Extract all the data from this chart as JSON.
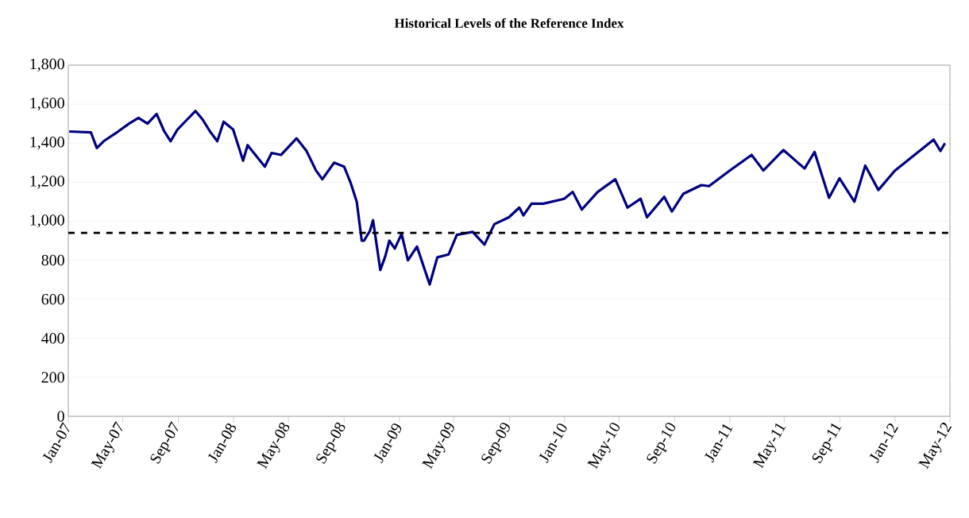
{
  "chart_data": {
    "type": "line",
    "title": "Historical Levels of the Reference Index",
    "x": [
      "2007-01-03",
      "2007-02-20",
      "2007-03-05",
      "2007-03-20",
      "2007-04-15",
      "2007-05-15",
      "2007-06-05",
      "2007-06-25",
      "2007-07-15",
      "2007-08-01",
      "2007-08-15",
      "2007-08-30",
      "2007-09-20",
      "2007-10-09",
      "2007-10-25",
      "2007-11-10",
      "2007-11-26",
      "2007-12-10",
      "2007-12-31",
      "2008-01-22",
      "2008-02-01",
      "2008-03-10",
      "2008-03-25",
      "2008-04-15",
      "2008-05-19",
      "2008-06-10",
      "2008-07-01",
      "2008-07-15",
      "2008-08-10",
      "2008-09-01",
      "2008-09-15",
      "2008-09-29",
      "2008-10-10",
      "2008-10-15",
      "2008-10-28",
      "2008-11-04",
      "2008-11-20",
      "2008-12-01",
      "2008-12-10",
      "2008-12-22",
      "2009-01-06",
      "2009-01-20",
      "2009-02-09",
      "2009-03-09",
      "2009-03-26",
      "2009-04-20",
      "2009-05-08",
      "2009-06-12",
      "2009-07-08",
      "2009-07-30",
      "2009-08-31",
      "2009-09-23",
      "2009-10-02",
      "2009-10-20",
      "2009-11-15",
      "2009-12-31",
      "2010-01-19",
      "2010-02-08",
      "2010-03-15",
      "2010-04-23",
      "2010-05-20",
      "2010-06-18",
      "2010-07-02",
      "2010-08-09",
      "2010-08-26",
      "2010-09-20",
      "2010-10-30",
      "2010-11-16",
      "2010-12-31",
      "2011-02-18",
      "2011-03-16",
      "2011-04-29",
      "2011-06-15",
      "2011-07-07",
      "2011-08-08",
      "2011-08-31",
      "2011-10-03",
      "2011-10-27",
      "2011-11-25",
      "2011-12-31",
      "2012-03-26",
      "2012-04-10",
      "2012-04-20"
    ],
    "series": [
      {
        "color": "#000080",
        "values": [
          1460,
          1455,
          1375,
          1410,
          1450,
          1500,
          1530,
          1500,
          1550,
          1460,
          1410,
          1470,
          1520,
          1565,
          1520,
          1460,
          1410,
          1510,
          1470,
          1310,
          1390,
          1280,
          1350,
          1340,
          1425,
          1360,
          1260,
          1215,
          1300,
          1280,
          1200,
          1100,
          900,
          900,
          950,
          1005,
          750,
          820,
          900,
          860,
          935,
          800,
          870,
          676,
          815,
          830,
          930,
          945,
          880,
          985,
          1020,
          1070,
          1030,
          1090,
          1090,
          1115,
          1150,
          1060,
          1150,
          1215,
          1070,
          1115,
          1020,
          1125,
          1050,
          1140,
          1185,
          1180,
          1258,
          1340,
          1260,
          1365,
          1270,
          1355,
          1120,
          1220,
          1100,
          1285,
          1160,
          1258,
          1418,
          1360,
          1400
        ]
      }
    ],
    "xlim": [
      "2007-01-01",
      "2012-05-01"
    ],
    "xticks": [
      {
        "value": "2007-01-01",
        "label": "Jan-07"
      },
      {
        "value": "2007-05-01",
        "label": "May-07"
      },
      {
        "value": "2007-09-01",
        "label": "Sep-07"
      },
      {
        "value": "2008-01-01",
        "label": "Jan-08"
      },
      {
        "value": "2008-05-01",
        "label": "May-08"
      },
      {
        "value": "2008-09-01",
        "label": "Sep-08"
      },
      {
        "value": "2009-01-01",
        "label": "Jan-09"
      },
      {
        "value": "2009-05-01",
        "label": "May-09"
      },
      {
        "value": "2009-09-01",
        "label": "Sep-09"
      },
      {
        "value": "2010-01-01",
        "label": "Jan-10"
      },
      {
        "value": "2010-05-01",
        "label": "May-10"
      },
      {
        "value": "2010-09-01",
        "label": "Sep-10"
      },
      {
        "value": "2011-01-01",
        "label": "Jan-11"
      },
      {
        "value": "2011-05-01",
        "label": "May-11"
      },
      {
        "value": "2011-09-01",
        "label": "Sep-11"
      },
      {
        "value": "2012-01-01",
        "label": "Jan-12"
      },
      {
        "value": "2012-05-01",
        "label": "May-12"
      }
    ],
    "ylim": [
      0,
      1800
    ],
    "yticks": [
      0,
      200,
      400,
      600,
      800,
      {
        "value": 1000,
        "label": "1,000"
      },
      {
        "value": 1200,
        "label": "1,200"
      },
      {
        "value": 1400,
        "label": "1,400"
      },
      {
        "value": 1600,
        "label": "1,600"
      },
      {
        "value": 1800,
        "label": "1,800"
      }
    ],
    "grid": "y",
    "ref_lines": [
      {
        "axis": "y",
        "value": 940,
        "color": "#000000",
        "line_style": "dashed"
      }
    ]
  }
}
